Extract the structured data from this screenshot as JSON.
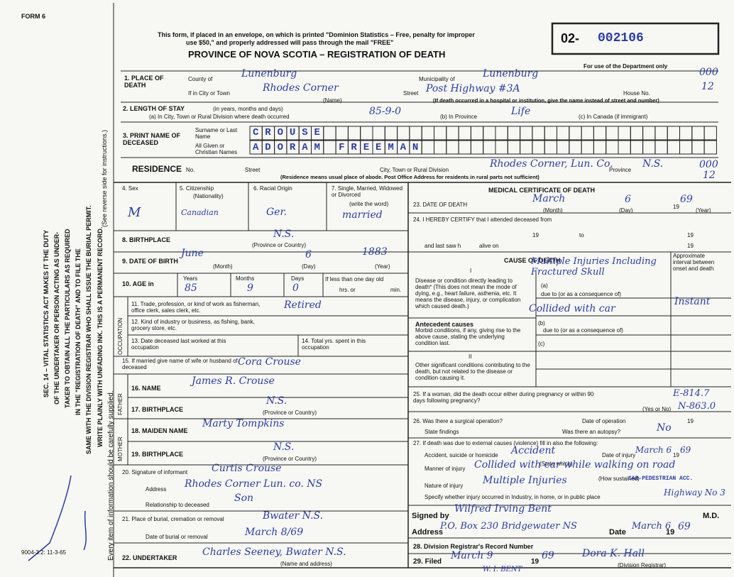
{
  "header": {
    "form_label": "FORM 6",
    "notice": [
      "This form, if placed in an envelope, on which is printed \"Dominion Statistics – Free, penalty for improper",
      "use $50,\" and properly addressed will pass through the mail \"FREE\""
    ],
    "title": "PROVINCE OF NOVA SCOTIA – REGISTRATION OF DEATH",
    "registration_prefix": "02-",
    "registration_number": "002106",
    "dept_use": "For use of the Department only",
    "dept_codes": [
      "000",
      "12"
    ]
  },
  "side_notice": [
    "SEC. 14 – VITAL STATISTICS ACT MAKES IT THE DUTY",
    "OF THE UNDERTAKER OR PERSON ACTING AS UNDER-",
    "TAKER TO OBTAIN ALL THE PARTICULARS AS REQUIRED",
    "IN THE \"REGISTRATION OF DEATH\" AND TO FILE THE",
    "SAME WITH THE DIVISION REGISTRAR WHO SHALL ISSUE THE BURIAL PERMIT.",
    "WRITE PLAINLY WITH UNFADING INK. THIS IS A PERMANENT RECORD.",
    "Every item of information should be carefully supplied.",
    "(See reverse side for instructions.)"
  ],
  "form_code": "9004-3.2: 11-3-65",
  "place": {
    "label": "1. PLACE OF DEATH",
    "county_label": "County of",
    "county": "Lunenburg",
    "municipality_label": "Municipality of",
    "municipality": "Lunenburg",
    "city_label": "If in City or Town",
    "city": "Rhodes Corner",
    "name_note": "(Name)",
    "street_label": "Street",
    "street": "Post Highway #3A",
    "house_label": "House No.",
    "hospital_note": "(If death occurred in a hospital or institution, give the name instead of street and number)"
  },
  "stay": {
    "label": "2. LENGTH OF STAY",
    "units": "(in years, months and days)",
    "a_label": "(a) In City, Town or Rural Division where death occurred",
    "a": "85-9-0",
    "b_label": "(b) In Province",
    "b": "Life",
    "c_label": "(c) In Canada (if immigrant)"
  },
  "name": {
    "label": "3. PRINT NAME OF DECEASED",
    "surname_label": "Surname or Last Name",
    "surname": "CROUSE",
    "given_label": "All Given or Christian Names",
    "given": "ADORAM FREEMAN"
  },
  "residence": {
    "label": "RESIDENCE",
    "no": "No.",
    "street": "Street",
    "division_label": "City, Town or Rural Division",
    "division": "Rhodes Corner, Lun. Co.",
    "province_label": "Province",
    "province": "N.S.",
    "note": "(Residence means usual place of abode. Post Office Address for residents in rural parts not sufficient)",
    "codes": [
      "000",
      "12"
    ]
  },
  "sex": {
    "label": "4. Sex",
    "value": "M"
  },
  "citizenship": {
    "label": "5. Citizenship",
    "note": "(Nationality)",
    "value": "Canadian"
  },
  "racial": {
    "label": "6. Racial Origin",
    "value": "Ger."
  },
  "marital": {
    "label": "7. Single, Married, Widowed or Divorced",
    "note": "(write the word)",
    "value": "married"
  },
  "birthplace": {
    "label": "8. BIRTHPLACE",
    "value": "N.S.",
    "note": "(Province or Country)"
  },
  "birth_date": {
    "label": "9. DATE OF BIRTH",
    "month": "June",
    "day": "6",
    "year": "1883",
    "month_note": "(Month)",
    "day_note": "(Day)",
    "year_note": "(Year)"
  },
  "age": {
    "label": "10. AGE in",
    "years_label": "Years",
    "months_label": "Months",
    "days_label": "Days",
    "years": "85",
    "months": "9",
    "days": "0",
    "under_day_label": "If less than one day old",
    "hours_label": "hrs. or",
    "minutes_label": "min."
  },
  "occupation": {
    "section": "OCCUPATION",
    "trade_label": "11. Trade, profession, or kind of work as fisherman, office clerk, sales clerk, etc.",
    "trade": "Retired",
    "industry_label": "12. Kind of industry or business, as fishing, bank, grocery store, etc.",
    "last_worked_label": "13. Date deceased last worked at this occupation",
    "years_label": "14. Total yrs. spent in this occupation"
  },
  "spouse": {
    "label": "15. If married give name of wife or husband of deceased",
    "value": "Cora Crouse"
  },
  "father": {
    "section": "FATHER",
    "name_label": "16. NAME",
    "name": "James R. Crouse",
    "birthplace_label": "17. BIRTHPLACE",
    "birthplace": "N.S.",
    "birthplace_note": "(Province or Country)"
  },
  "mother": {
    "section": "MOTHER",
    "maiden_label": "18. MAIDEN NAME",
    "maiden": "Marty Tompkins",
    "birthplace_label": "19. BIRTHPLACE",
    "birthplace": "N.S.",
    "birthplace_note": "(Province or Country)"
  },
  "informant": {
    "label": "20. Signature of informant",
    "signature": "Curtis Crouse",
    "address_label": "Address",
    "address": "Rhodes Corner Lun. co. NS",
    "relationship_label": "Relationship to deceased",
    "relationship": "Son"
  },
  "burial": {
    "label": "21. Place of burial, cremation or removal",
    "place": "Bwater N.S.",
    "date_label": "Date of burial or removal",
    "date": "March 8/69"
  },
  "undertaker": {
    "label": "22. UNDERTAKER",
    "value": "Charles Seeney, Bwater N.S.",
    "note": "(Name and address)"
  },
  "medical": {
    "title": "MEDICAL CERTIFICATE OF DEATH",
    "death_date": {
      "label": "23. DATE OF DEATH",
      "month": "March",
      "day": "6",
      "century": "19",
      "year": "69",
      "month_note": "(Month)",
      "day_note": "(Day)",
      "year_note": "(Year)"
    },
    "attendance": {
      "label": "24. I HEREBY CERTIFY that I attended deceased from",
      "from_century": "19",
      "to": "to",
      "to_century": "19",
      "last_saw": "and last saw h",
      "alive_on": "alive on",
      "alive_century": "19"
    },
    "cause": {
      "title": "CAUSE OF DEATH",
      "interval_label": "Approximate interval between onset and death",
      "part_one": "I",
      "direct_label": "Disease or condition directly leading to death* (This does not mean the mode of dying, e.g., heart failure, asthenia, etc. It means the disease, injury, or complication which caused death.)",
      "a_label": "(a)",
      "a": "Multiple Injuries Including Fractured Skull",
      "due_to_1": "due to (or as a consequence of)",
      "cause_2": "Collided with car",
      "interval": "Instant",
      "antecedent_label": "Antecedent causes",
      "antecedent_note": "Morbid conditions, if any, giving rise to the above cause, stating the underlying condition last.",
      "b_label": "(b)",
      "due_to_2": "due to (or as a consequence of)",
      "c_label": "(c)",
      "part_two": "II",
      "other_label": "Other significant conditions contributing to the death, but not related to the disease or condition causing it."
    },
    "pregnancy": {
      "label": "25. If a woman, did the death occur either during pregnancy or within 90 days following pregnancy?",
      "yes_no_note": "(Yes or No)",
      "codes": [
        "E-814.7",
        "N-863.0"
      ]
    },
    "operation": {
      "label": "26. Was there a surgical operation?",
      "date_label": "Date of operation",
      "century": "19",
      "findings_label": "State findings",
      "autopsy_label": "Was there an autopsy?",
      "autopsy": "No"
    },
    "external": {
      "label": "27. If death was due to external causes (violence) fill in also the following:",
      "kind_label": "Accident, suicide or homicide",
      "kind": "Accident",
      "kind_note": "(State which)",
      "date_label": "Date of injury",
      "date": "March 6",
      "century": "19",
      "year": "69",
      "manner_label": "Manner of injury",
      "manner": "Collided with car while walking on road",
      "manner_note": "(How sustained)",
      "code": "CAR-PEDESTRIAN ACC.",
      "nature_label": "Nature of injury",
      "nature": "Multiple Injuries",
      "place_label": "Specify whether injury occurred in Industry, in home, or in public place",
      "place": "Highway No 3"
    },
    "signature": {
      "label": "Signed by",
      "name": "Wilfred Irving Bent",
      "title": "M.D.",
      "address_label": "Address",
      "address": "P.O. Box 230 Bridgewater NS",
      "date_label": "Date",
      "date": "March 6",
      "century": "19",
      "year": "69"
    }
  },
  "registrar": {
    "record_label": "28. Division Registrar's Record Number",
    "filed_label": "29. Filed",
    "filed": "March 9",
    "century": "19",
    "year": "69",
    "name": "Dora K. Hall",
    "note": "(Division Registrar)",
    "stamp": "W. I. BENT"
  }
}
